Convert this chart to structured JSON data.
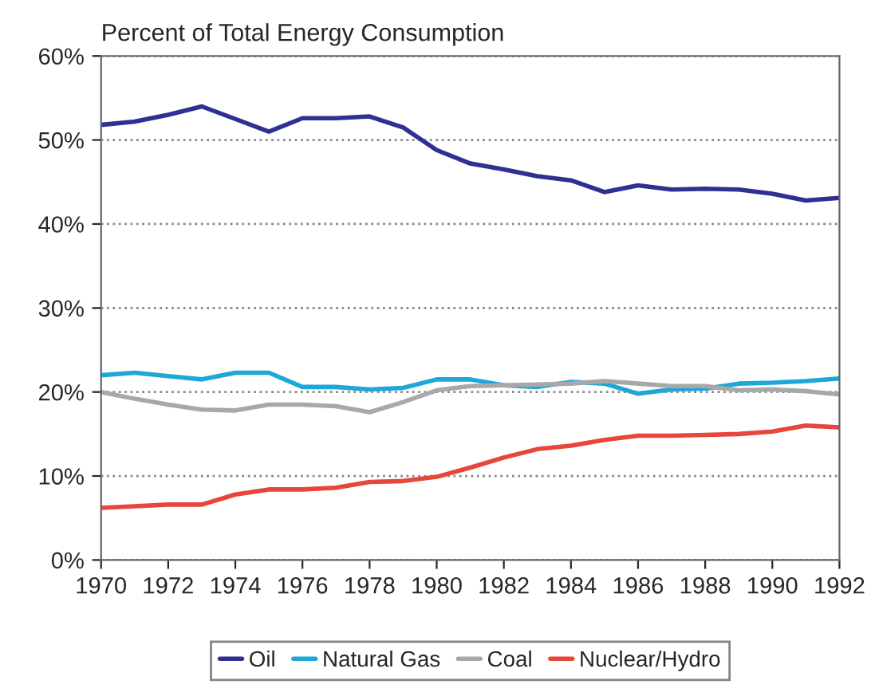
{
  "chart_data": {
    "type": "line",
    "ylabel": "Percent of Total Energy Consumption",
    "x": [
      1970,
      1971,
      1972,
      1973,
      1974,
      1975,
      1976,
      1977,
      1978,
      1979,
      1980,
      1981,
      1982,
      1983,
      1984,
      1985,
      1986,
      1987,
      1988,
      1989,
      1990,
      1991,
      1992
    ],
    "series": [
      {
        "name": "Oil",
        "color": "#2e3192",
        "values": [
          51.8,
          52.2,
          53.0,
          54.0,
          52.5,
          51.0,
          52.6,
          52.6,
          52.8,
          51.5,
          48.8,
          47.2,
          46.5,
          45.7,
          45.2,
          43.8,
          44.6,
          44.1,
          44.2,
          44.1,
          43.6,
          42.8,
          43.1
        ]
      },
      {
        "name": "Natural Gas",
        "color": "#1ea7d8",
        "values": [
          22.0,
          22.3,
          21.9,
          21.5,
          22.3,
          22.3,
          20.6,
          20.6,
          20.3,
          20.5,
          21.5,
          21.5,
          20.8,
          20.6,
          21.2,
          21.0,
          19.8,
          20.3,
          20.4,
          21.0,
          21.1,
          21.3,
          21.6
        ]
      },
      {
        "name": "Coal",
        "color": "#a8a8a8",
        "values": [
          20.0,
          19.2,
          18.5,
          17.9,
          17.8,
          18.5,
          18.5,
          18.3,
          17.6,
          18.8,
          20.2,
          20.7,
          20.8,
          20.9,
          21.0,
          21.3,
          21.0,
          20.7,
          20.7,
          20.2,
          20.3,
          20.1,
          19.7
        ]
      },
      {
        "name": "Nuclear/Hydro",
        "color": "#e8453c",
        "values": [
          6.2,
          6.4,
          6.6,
          6.6,
          7.8,
          8.4,
          8.4,
          8.6,
          9.3,
          9.4,
          9.9,
          11.0,
          12.2,
          13.2,
          13.6,
          14.3,
          14.8,
          14.8,
          14.9,
          15.0,
          15.3,
          16.0,
          15.8
        ]
      }
    ],
    "xlim": [
      1970,
      1992
    ],
    "xticks": [
      1970,
      1972,
      1974,
      1976,
      1978,
      1980,
      1982,
      1984,
      1986,
      1988,
      1990,
      1992
    ],
    "ylim": [
      0,
      60
    ],
    "yticks": [
      {
        "value": 0,
        "label": "0%"
      },
      {
        "value": 10,
        "label": "10%"
      },
      {
        "value": 20,
        "label": "20%"
      },
      {
        "value": 30,
        "label": "30%"
      },
      {
        "value": 40,
        "label": "40%"
      },
      {
        "value": 50,
        "label": "50%"
      },
      {
        "value": 60,
        "label": "60%"
      }
    ],
    "grid": "y",
    "legend": "bottom",
    "marker": "none",
    "line_style": "solid"
  }
}
